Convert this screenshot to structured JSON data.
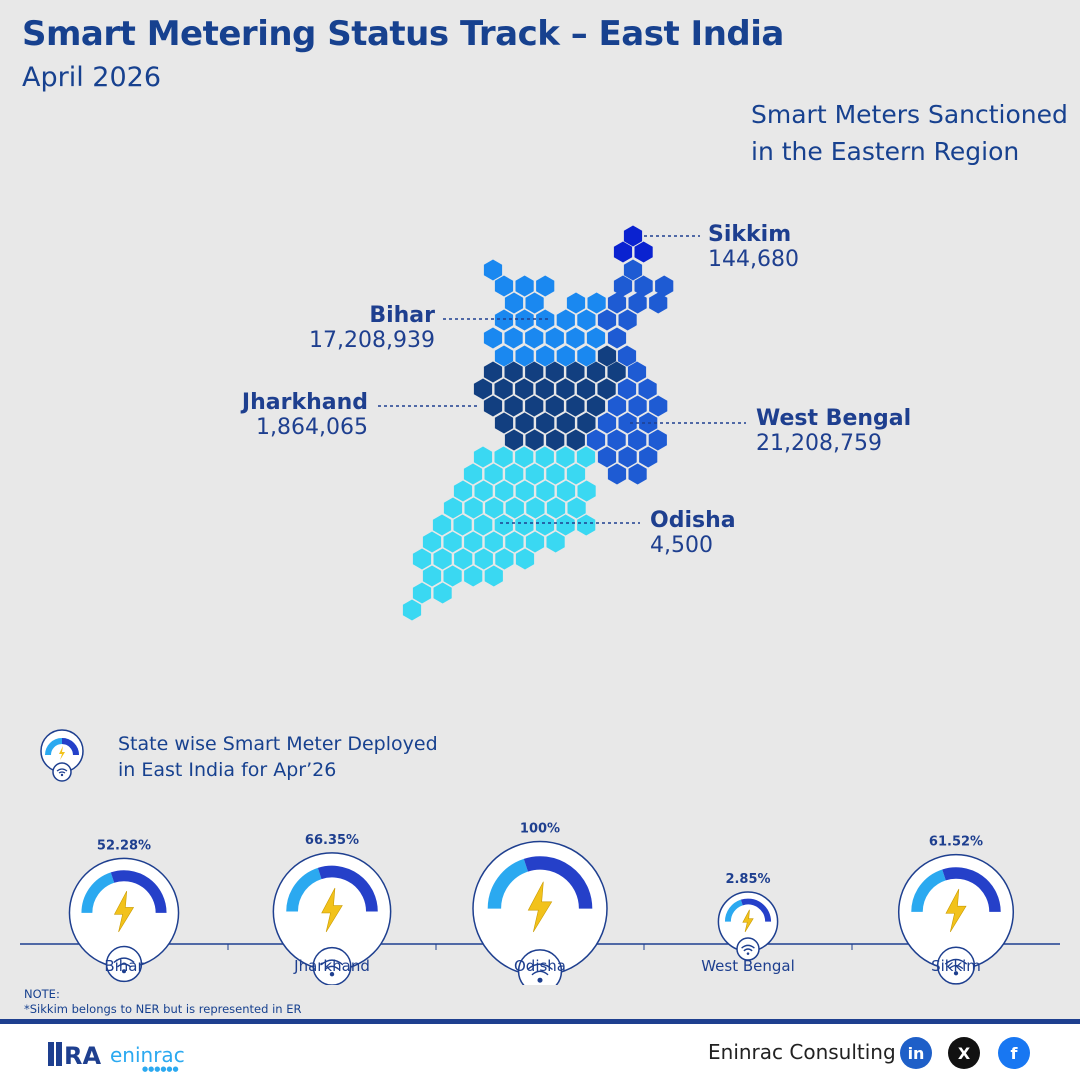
{
  "title": "Smart Metering Status Track – East India",
  "subtitle": "April 2026",
  "map_title_line1": "Smart Meters Sanctioned",
  "map_title_line2": "in the Eastern Region",
  "colors": {
    "Bihar": "#1a88f0",
    "Jharkhand": "#123f80",
    "West Bengal": "#1e5bd3",
    "Odisha": "#3ad8f2",
    "Sikkim": "#0a22d0",
    "gauge_dark": "#2540c9",
    "gauge_light": "#2ba9f0"
  },
  "sanctioned": [
    {
      "state": "Sikkim",
      "value": "144,680"
    },
    {
      "state": "Bihar",
      "value": "17,208,939"
    },
    {
      "state": "Jharkhand",
      "value": "1,864,065"
    },
    {
      "state": "West Bengal",
      "value": "21,208,759"
    },
    {
      "state": "Odisha",
      "value": "4,500"
    }
  ],
  "deployed_title_line1": "State wise Smart Meter Deployed",
  "deployed_title_line2": "in East India for Apr’26",
  "chart_data": {
    "type": "bar",
    "categories": [
      "Bihar",
      "Jharkhand",
      "Odisha",
      "West Bengal",
      "Sikkim"
    ],
    "values": [
      52.28,
      66.35,
      100,
      2.85,
      61.52
    ],
    "labels": [
      "52.28%",
      "66.35%",
      "100%",
      "2.85%",
      "61.52%"
    ],
    "unit": "%"
  },
  "note_label": "NOTE:",
  "note_text": "*Sikkim belongs to NER but is represented in ER",
  "brand": "Eninrac Consulting",
  "logo_text": "RAeninrac",
  "social": [
    "linkedin-icon",
    "x-icon",
    "facebook-icon"
  ],
  "social_labels": {
    "linkedin": "in",
    "x": "X",
    "facebook": "f"
  }
}
